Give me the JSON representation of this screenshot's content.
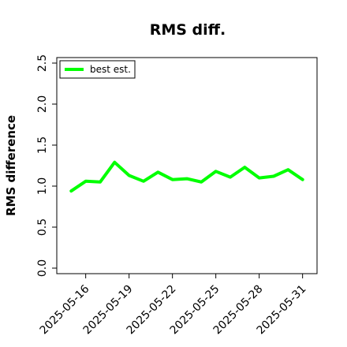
{
  "chart_data": {
    "type": "line",
    "title": "RMS diff.",
    "xlabel": "",
    "ylabel": "RMS difference",
    "ylim": [
      0,
      2.5
    ],
    "yticks": [
      "0.0",
      "0.5",
      "1.0",
      "1.5",
      "2.0",
      "2.5"
    ],
    "yticks_values": [
      0,
      0.5,
      1.0,
      1.5,
      2.0,
      2.5
    ],
    "xlim": [
      "2025-05-14",
      "2025-06-01"
    ],
    "xticks": [
      "2025-05-16",
      "2025-05-19",
      "2025-05-22",
      "2025-05-25",
      "2025-05-28",
      "2025-05-31"
    ],
    "x": [
      "2025-05-15",
      "2025-05-16",
      "2025-05-17",
      "2025-05-18",
      "2025-05-19",
      "2025-05-20",
      "2025-05-21",
      "2025-05-22",
      "2025-05-23",
      "2025-05-24",
      "2025-05-25",
      "2025-05-26",
      "2025-05-27",
      "2025-05-28",
      "2025-05-29",
      "2025-05-30",
      "2025-05-31"
    ],
    "series": [
      {
        "name": "best est.",
        "color": "#00ff00",
        "values": [
          0.94,
          1.06,
          1.05,
          1.29,
          1.13,
          1.06,
          1.17,
          1.08,
          1.09,
          1.05,
          1.18,
          1.11,
          1.23,
          1.1,
          1.12,
          1.2,
          1.08
        ]
      }
    ],
    "legend": "top-left",
    "grid": false
  }
}
